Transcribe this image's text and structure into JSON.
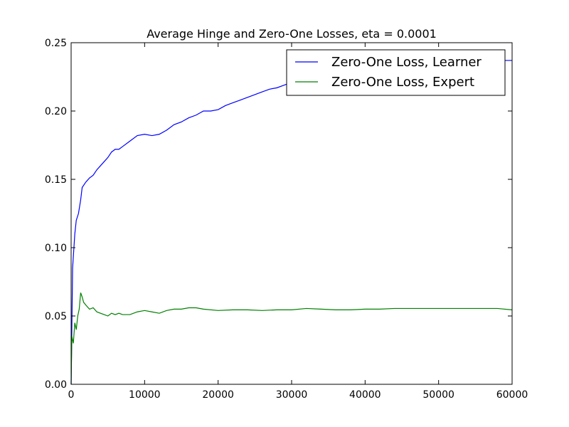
{
  "chart_data": {
    "type": "line",
    "title": "Average Hinge and Zero-One Losses, eta = 0.0001",
    "xlabel": "",
    "ylabel": "",
    "xlim": [
      0,
      60000
    ],
    "ylim": [
      0,
      0.25
    ],
    "x_ticks": [
      "0",
      "10000",
      "20000",
      "30000",
      "40000",
      "50000",
      "60000"
    ],
    "y_ticks": [
      "0.00",
      "0.05",
      "0.10",
      "0.15",
      "0.20",
      "0.25"
    ],
    "grid": false,
    "legend_position": "top-right",
    "series": [
      {
        "name": "Zero-One Loss, Learner",
        "color": "#0000ff",
        "x": [
          0,
          200,
          500,
          700,
          1000,
          1300,
          1500,
          2000,
          2500,
          3000,
          3500,
          4000,
          4500,
          5000,
          5500,
          6000,
          6500,
          7000,
          8000,
          9000,
          10000,
          11000,
          12000,
          13000,
          14000,
          15000,
          16000,
          17000,
          18000,
          19000,
          20000,
          21000,
          22000,
          23000,
          24000,
          25000,
          26000,
          27000,
          28000,
          29000,
          30000,
          32000,
          34000,
          36000,
          38000,
          40000,
          42000,
          44000,
          46000,
          48000,
          50000,
          52000,
          54000,
          56000,
          58000,
          60000
        ],
        "y": [
          0.0,
          0.085,
          0.11,
          0.12,
          0.125,
          0.135,
          0.144,
          0.148,
          0.151,
          0.153,
          0.157,
          0.16,
          0.163,
          0.166,
          0.17,
          0.172,
          0.172,
          0.174,
          0.178,
          0.182,
          0.183,
          0.182,
          0.183,
          0.186,
          0.19,
          0.192,
          0.195,
          0.197,
          0.2,
          0.2,
          0.201,
          0.204,
          0.206,
          0.208,
          0.21,
          0.212,
          0.214,
          0.216,
          0.217,
          0.219,
          0.221,
          0.224,
          0.226,
          0.228,
          0.229,
          0.231,
          0.232,
          0.233,
          0.234,
          0.235,
          0.235,
          0.236,
          0.236,
          0.237,
          0.237,
          0.237
        ]
      },
      {
        "name": "Zero-One Loss, Expert",
        "color": "#008000",
        "x": [
          0,
          100,
          300,
          500,
          700,
          900,
          1100,
          1300,
          1500,
          1700,
          2000,
          2500,
          3000,
          3500,
          4000,
          4500,
          5000,
          5500,
          6000,
          6500,
          7000,
          8000,
          9000,
          10000,
          11000,
          12000,
          13000,
          14000,
          15000,
          16000,
          17000,
          18000,
          20000,
          22000,
          24000,
          26000,
          28000,
          30000,
          32000,
          34000,
          36000,
          38000,
          40000,
          42000,
          44000,
          46000,
          48000,
          50000,
          52000,
          54000,
          56000,
          58000,
          60000
        ],
        "y": [
          0.0,
          0.035,
          0.03,
          0.045,
          0.04,
          0.05,
          0.055,
          0.067,
          0.064,
          0.06,
          0.058,
          0.055,
          0.056,
          0.053,
          0.052,
          0.051,
          0.05,
          0.052,
          0.051,
          0.052,
          0.051,
          0.051,
          0.053,
          0.054,
          0.053,
          0.052,
          0.054,
          0.055,
          0.055,
          0.056,
          0.056,
          0.055,
          0.054,
          0.0545,
          0.0545,
          0.054,
          0.0545,
          0.0545,
          0.0555,
          0.055,
          0.0545,
          0.0545,
          0.055,
          0.055,
          0.0555,
          0.0555,
          0.0555,
          0.0555,
          0.0555,
          0.0555,
          0.0555,
          0.0555,
          0.0545
        ]
      }
    ]
  }
}
